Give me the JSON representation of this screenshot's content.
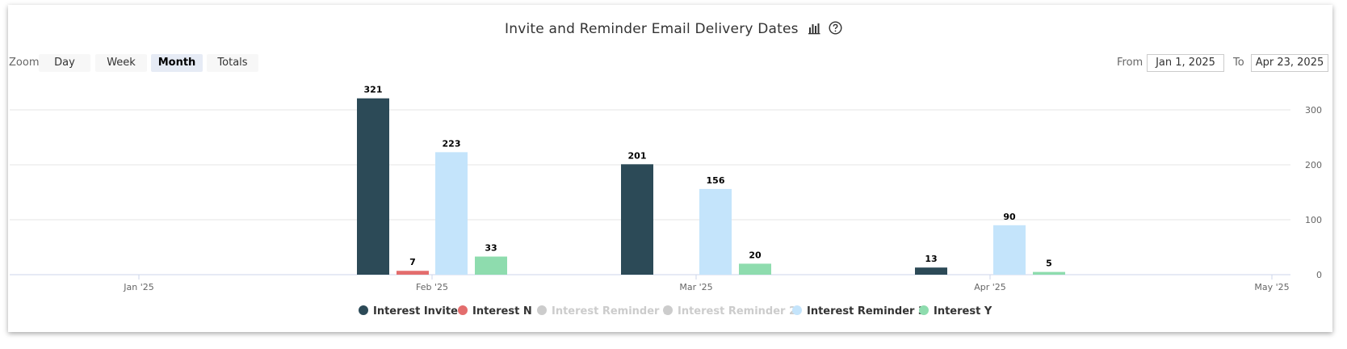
{
  "header": {
    "title": "Invite and Reminder Email Delivery Dates",
    "chart_icon": "bar-chart-icon",
    "help_icon": "question-circle-icon"
  },
  "zoom": {
    "label": "Zoom",
    "buttons": [
      {
        "label": "Day",
        "active": false
      },
      {
        "label": "Week",
        "active": false
      },
      {
        "label": "Month",
        "active": true
      },
      {
        "label": "Totals",
        "active": false
      }
    ]
  },
  "range": {
    "from_label": "From",
    "from_value": "Jan 1, 2025",
    "to_label": "To",
    "to_value": "Apr 23, 2025"
  },
  "chart_data": {
    "type": "bar",
    "title": "Invite and Reminder Email Delivery Dates",
    "categories": [
      "Jan '25",
      "Feb '25",
      "Mar '25",
      "Apr '25"
    ],
    "x_tick_labels": [
      "Jan '25",
      "Feb '25",
      "Mar '25",
      "Apr '25",
      "May '25"
    ],
    "y_ticks": [
      0,
      100,
      200,
      300
    ],
    "ylim": [
      0,
      350
    ],
    "y_axis_side": "right",
    "grid": true,
    "legend_position": "bottom",
    "series": [
      {
        "name": "Interest Invite",
        "color": "#2c4a57",
        "visible": true,
        "values": [
          null,
          321,
          201,
          13
        ]
      },
      {
        "name": "Interest N",
        "color": "#e36d6d",
        "visible": true,
        "values": [
          null,
          7,
          null,
          null
        ]
      },
      {
        "name": "Interest Reminder 1",
        "color": "#cccccc",
        "visible": false,
        "values": [
          null,
          null,
          null,
          null
        ]
      },
      {
        "name": "Interest Reminder 2",
        "color": "#cccccc",
        "visible": false,
        "values": [
          null,
          null,
          null,
          null
        ]
      },
      {
        "name": "Interest Reminder 3",
        "color": "#c4e4fb",
        "visible": true,
        "values": [
          null,
          223,
          156,
          90
        ]
      },
      {
        "name": "Interest Y",
        "color": "#8edcae",
        "visible": true,
        "values": [
          null,
          33,
          20,
          5
        ]
      }
    ]
  }
}
